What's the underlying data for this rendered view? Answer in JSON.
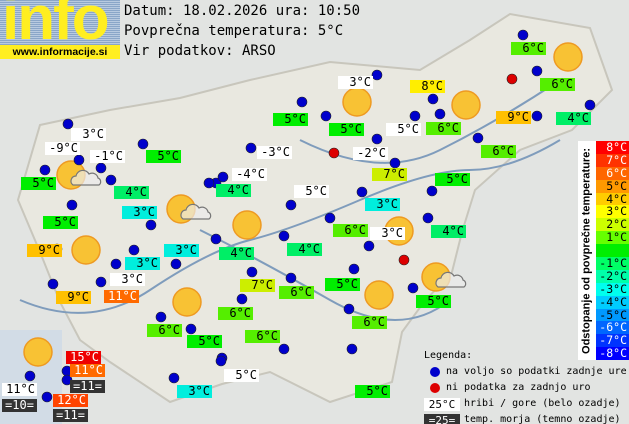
{
  "logo": {
    "word": "info",
    "url": "www.informacije.si"
  },
  "header": {
    "date_line": "Datum: 18.02.2026 ura: 10:50",
    "avg_line": "Povprečna temperatura: 5°C",
    "source_line": "Vir podatkov: ARSO"
  },
  "colors": {
    "white": "#ffffff",
    "dark": "#333333",
    "cyan": "#00eedd",
    "g4": "#00ee66",
    "g5": "#00ee00",
    "g6": "#55ee00",
    "c7": "#ccee00",
    "c8": "#ffee00",
    "c9": "#ffc000",
    "c11": "#ff6a00",
    "c12": "#ff4400",
    "c15": "#ee0000",
    "marker_ok": "#0000cc",
    "marker_missing": "#dd0000",
    "sun": "#f8c234"
  },
  "stations": [
    {
      "temp": "3°C",
      "bg": "white"
    },
    {
      "temp": "-9°C",
      "bg": "white"
    },
    {
      "temp": "-1°C",
      "bg": "white"
    },
    {
      "temp": "5°C",
      "bg": "g5"
    },
    {
      "temp": "5°C",
      "bg": "g5"
    },
    {
      "temp": "4°C",
      "bg": "g4"
    },
    {
      "temp": "3°C",
      "bg": "cyan"
    },
    {
      "temp": "5°C",
      "bg": "g5"
    },
    {
      "temp": "9°C",
      "bg": "c9"
    },
    {
      "temp": "3°C",
      "bg": "cyan"
    },
    {
      "temp": "3°C",
      "bg": "cyan"
    },
    {
      "temp": "3°C",
      "bg": "white"
    },
    {
      "temp": "8°C",
      "bg": "c8"
    },
    {
      "temp": "5°C",
      "bg": "g5"
    },
    {
      "temp": "5°C",
      "bg": "g5"
    },
    {
      "temp": "5°C",
      "bg": "white"
    },
    {
      "temp": "-3°C",
      "bg": "white"
    },
    {
      "temp": "-2°C",
      "bg": "white"
    },
    {
      "temp": "-4°C",
      "bg": "white"
    },
    {
      "temp": "7°C",
      "bg": "c7"
    },
    {
      "temp": "4°C",
      "bg": "g4"
    },
    {
      "temp": "5°C",
      "bg": "white"
    },
    {
      "temp": "3°C",
      "bg": "cyan"
    },
    {
      "temp": "6°C",
      "bg": "g6"
    },
    {
      "temp": "6°C",
      "bg": "g6"
    },
    {
      "temp": "9°C",
      "bg": "c9"
    },
    {
      "temp": "4°C",
      "bg": "g4"
    },
    {
      "temp": "6°C",
      "bg": "g6"
    },
    {
      "temp": "6°C",
      "bg": "g6"
    },
    {
      "temp": "5°C",
      "bg": "g5"
    },
    {
      "temp": "4°C",
      "bg": "g4"
    },
    {
      "temp": "4°C",
      "bg": "g4"
    },
    {
      "temp": "3°C",
      "bg": "white"
    },
    {
      "temp": "11°C",
      "bg": "c11"
    },
    {
      "temp": "7°C",
      "bg": "c7"
    },
    {
      "temp": "6°C",
      "bg": "g6"
    },
    {
      "temp": "6°C",
      "bg": "g6"
    },
    {
      "temp": "6°C",
      "bg": "g6"
    },
    {
      "temp": "5°C",
      "bg": "g5"
    },
    {
      "temp": "6°C",
      "bg": "g6"
    },
    {
      "temp": "6°C",
      "bg": "g6"
    },
    {
      "temp": "3°C",
      "bg": "white"
    },
    {
      "temp": "4°C",
      "bg": "g4"
    },
    {
      "temp": "5°C",
      "bg": "g5"
    },
    {
      "temp": "5°C",
      "bg": "g5"
    },
    {
      "temp": "6°C",
      "bg": "g6"
    },
    {
      "temp": "9°C",
      "bg": "c9"
    },
    {
      "temp": "15°C",
      "bg": "c15"
    },
    {
      "temp": "11°C",
      "bg": "c11"
    },
    {
      "temp": "=11=",
      "bg": "dark"
    },
    {
      "temp": "11°C",
      "bg": "white"
    },
    {
      "temp": "=10=",
      "bg": "dark"
    },
    {
      "temp": "12°C",
      "bg": "c12"
    },
    {
      "temp": "=11=",
      "bg": "dark"
    },
    {
      "temp": "5°C",
      "bg": "white"
    },
    {
      "temp": "3°C",
      "bg": "cyan"
    },
    {
      "temp": "5°C",
      "bg": "g5"
    }
  ],
  "markers": {
    "ok_count": 56,
    "missing_count": 3
  },
  "weather_icons": [
    "sun",
    "sun",
    "sun",
    "sun",
    "sun",
    "sun",
    "sun",
    "sun",
    "sun",
    "sun-cloud",
    "sun-cloud",
    "sun-cloud"
  ],
  "scale": {
    "title": "Odstopanje od povprečne temperature:",
    "rows": [
      {
        "label": "8°C",
        "color": "#ff0000",
        "fg": "#ffffff"
      },
      {
        "label": "7°C",
        "color": "#ff3300",
        "fg": "#ffffff"
      },
      {
        "label": "6°C",
        "color": "#ff6600",
        "fg": "#ffffff"
      },
      {
        "label": "5°C",
        "color": "#ff9900",
        "fg": "#000000"
      },
      {
        "label": "4°C",
        "color": "#ffcc00",
        "fg": "#000000"
      },
      {
        "label": "3°C",
        "color": "#ffff00",
        "fg": "#000000"
      },
      {
        "label": "2°C",
        "color": "#ccff00",
        "fg": "#000000"
      },
      {
        "label": "1°C",
        "color": "#66ff00",
        "fg": "#000000"
      },
      {
        "label": "",
        "color": "#00ee00",
        "fg": "#000000"
      },
      {
        "label": "-1°C",
        "color": "#00ff66",
        "fg": "#000000"
      },
      {
        "label": "-2°C",
        "color": "#00ffaa",
        "fg": "#000000"
      },
      {
        "label": "-3°C",
        "color": "#00ffee",
        "fg": "#000000"
      },
      {
        "label": "-4°C",
        "color": "#00ccff",
        "fg": "#000000"
      },
      {
        "label": "-5°C",
        "color": "#0099ff",
        "fg": "#000000"
      },
      {
        "label": "-6°C",
        "color": "#0066ff",
        "fg": "#ffffff"
      },
      {
        "label": "-7°C",
        "color": "#0033ff",
        "fg": "#ffffff"
      },
      {
        "label": "-8°C",
        "color": "#0000ff",
        "fg": "#ffffff"
      }
    ]
  },
  "legend": {
    "title": "Legenda:",
    "ok": "na voljo so podatki zadnje ure",
    "missing": "ni podatka za zadnjo uro",
    "mountain_sample": "25°C",
    "mountain": "hribi / gore (belo ozadje)",
    "sea_sample": "=25=",
    "sea": "temp. morja (temno ozadje)"
  }
}
